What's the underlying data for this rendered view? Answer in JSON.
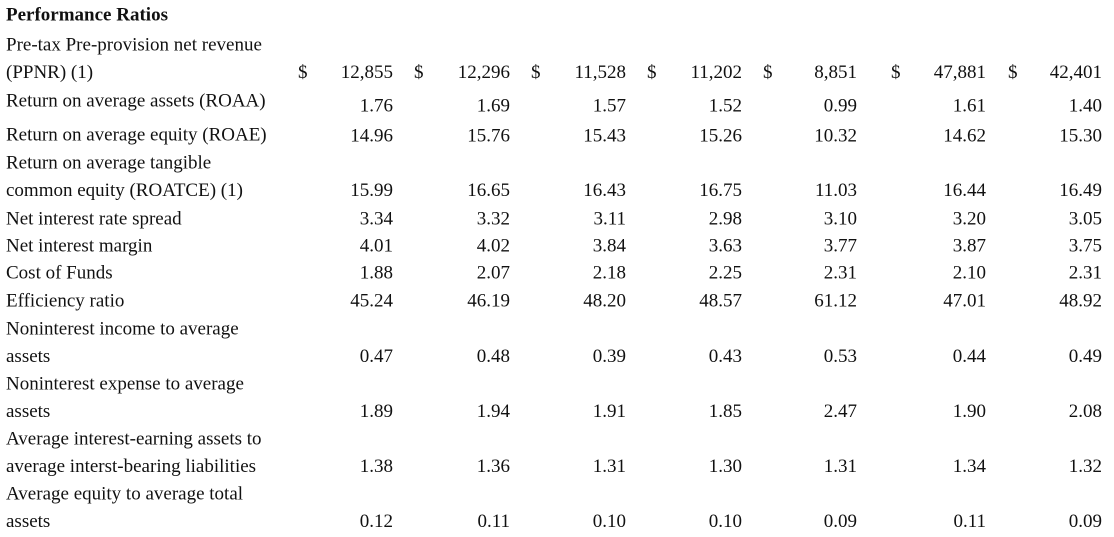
{
  "title": "Performance Ratios",
  "rows": [
    {
      "label": [
        "Pre-tax Pre-provision net revenue",
        "(PPNR) (1)"
      ],
      "currency": "$",
      "values": [
        "12,855",
        "12,296",
        "11,528",
        "11,202",
        "8,851",
        "47,881",
        "42,401"
      ]
    },
    {
      "label": [
        "Return on average assets (ROAA)"
      ],
      "values": [
        "1.76",
        "1.69",
        "1.57",
        "1.52",
        "0.99",
        "1.61",
        "1.40"
      ]
    },
    {
      "label": [
        "Return on average equity (ROAE)"
      ],
      "values": [
        "14.96",
        "15.76",
        "15.43",
        "15.26",
        "10.32",
        "14.62",
        "15.30"
      ]
    },
    {
      "label": [
        "Return on average tangible",
        "common equity (ROATCE) (1)"
      ],
      "values": [
        "15.99",
        "16.65",
        "16.43",
        "16.75",
        "11.03",
        "16.44",
        "16.49"
      ]
    },
    {
      "label": [
        "Net interest rate spread"
      ],
      "values": [
        "3.34",
        "3.32",
        "3.11",
        "2.98",
        "3.10",
        "3.20",
        "3.05"
      ]
    },
    {
      "label": [
        "Net interest margin"
      ],
      "values": [
        "4.01",
        "4.02",
        "3.84",
        "3.63",
        "3.77",
        "3.87",
        "3.75"
      ]
    },
    {
      "label": [
        "Cost of Funds"
      ],
      "values": [
        "1.88",
        "2.07",
        "2.18",
        "2.25",
        "2.31",
        "2.10",
        "2.31"
      ]
    },
    {
      "label": [
        "Efficiency ratio"
      ],
      "values": [
        "45.24",
        "46.19",
        "48.20",
        "48.57",
        "61.12",
        "47.01",
        "48.92"
      ]
    },
    {
      "label": [
        "Noninterest income to average",
        "assets"
      ],
      "values": [
        "0.47",
        "0.48",
        "0.39",
        "0.43",
        "0.53",
        "0.44",
        "0.49"
      ]
    },
    {
      "label": [
        "Noninterest expense to average",
        "assets"
      ],
      "values": [
        "1.89",
        "1.94",
        "1.91",
        "1.85",
        "2.47",
        "1.90",
        "2.08"
      ]
    },
    {
      "label": [
        "Average interest-earning assets to",
        "average interst-bearing liabilities"
      ],
      "values": [
        "1.38",
        "1.36",
        "1.31",
        "1.30",
        "1.31",
        "1.34",
        "1.32"
      ]
    },
    {
      "label": [
        "Average equity to average total",
        "assets"
      ],
      "values": [
        "0.12",
        "0.11",
        "0.10",
        "0.10",
        "0.09",
        "0.11",
        "0.09"
      ]
    }
  ]
}
